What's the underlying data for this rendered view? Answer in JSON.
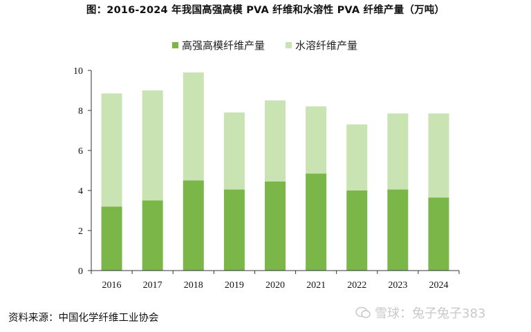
{
  "chart_data": {
    "type": "bar",
    "stacked": true,
    "title": "图：2016-2024 年我国高强高模 PVA 纤维和水溶性 PVA 纤维产量（万吨）",
    "categories": [
      "2016",
      "2017",
      "2018",
      "2019",
      "2020",
      "2021",
      "2022",
      "2023",
      "2024"
    ],
    "series": [
      {
        "name": "高强高模纤维产量",
        "color": "#7ab648",
        "values": [
          3.2,
          3.5,
          4.5,
          4.05,
          4.45,
          4.85,
          4.0,
          4.05,
          3.65
        ]
      },
      {
        "name": "水溶纤维产量",
        "color": "#c9e3b2",
        "values": [
          5.65,
          5.5,
          5.4,
          3.85,
          4.05,
          3.35,
          3.3,
          3.8,
          4.2
        ]
      }
    ],
    "ylim": [
      0,
      10
    ],
    "yticks": [
      "0",
      "2",
      "4",
      "6",
      "8",
      "10"
    ],
    "xlabel": "",
    "ylabel": "",
    "legend": "top-center",
    "grid": false
  },
  "source": "资料来源：中国化学纤维工业协会",
  "watermark": "雪球：兔子兔子383"
}
